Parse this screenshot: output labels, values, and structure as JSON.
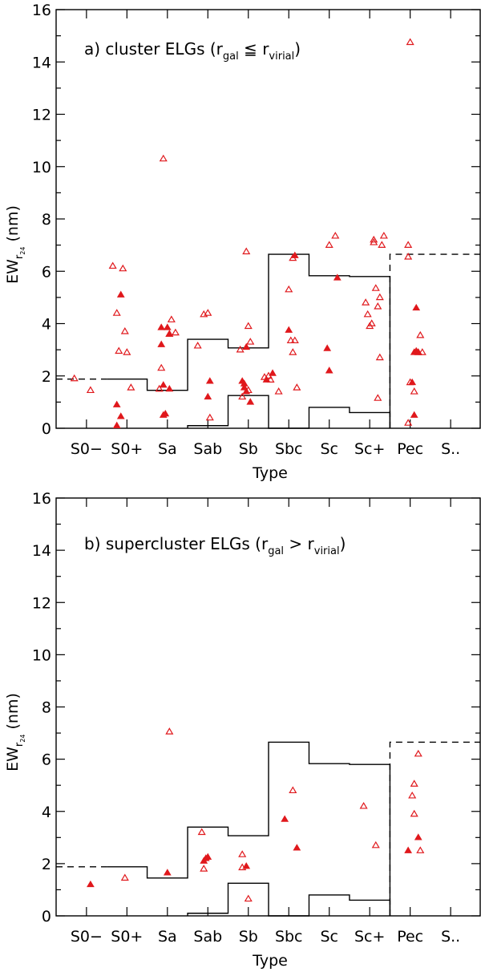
{
  "chart_data": [
    {
      "type": "scatter",
      "title": "a) cluster ELGs (r_gal ≦ r_virial)",
      "title_parts": {
        "prefix": "a) cluster ELGs (r",
        "sub1": "gal",
        "mid": " ≦ r",
        "sub2": "virial",
        "suffix": ")"
      },
      "xlabel": "Type",
      "ylabel": {
        "main": "EW",
        "sub": "r",
        "subsub": "24",
        "unit": " (nm)"
      },
      "categories": [
        "S0−",
        "S0+",
        "Sa",
        "Sab",
        "Sb",
        "Sbc",
        "Sc",
        "Sc+",
        "Pec",
        "S.."
      ],
      "ylim": [
        0,
        16
      ],
      "yticks": [
        "0",
        "2",
        "4",
        "6",
        "8",
        "10",
        "12",
        "14",
        "16"
      ],
      "series": [
        {
          "name": "open",
          "points": [
            [
              -0.3,
              1.9
            ],
            [
              0.1,
              1.45
            ],
            [
              0.65,
              6.2
            ],
            [
              0.75,
              4.4
            ],
            [
              0.8,
              2.95
            ],
            [
              0.9,
              6.1
            ],
            [
              0.95,
              3.7
            ],
            [
              1.0,
              2.9
            ],
            [
              1.1,
              1.55
            ],
            [
              1.8,
              1.5
            ],
            [
              1.85,
              2.3
            ],
            [
              1.9,
              10.3
            ],
            [
              2.05,
              3.6
            ],
            [
              2.1,
              4.15
            ],
            [
              2.2,
              3.65
            ],
            [
              2.75,
              3.15
            ],
            [
              2.9,
              4.35
            ],
            [
              3.0,
              4.4
            ],
            [
              3.05,
              0.4
            ],
            [
              3.8,
              3.0
            ],
            [
              3.85,
              1.2
            ],
            [
              3.95,
              6.75
            ],
            [
              4.0,
              3.9
            ],
            [
              4.05,
              3.3
            ],
            [
              4.0,
              1.45
            ],
            [
              4.4,
              1.95
            ],
            [
              4.5,
              2.0
            ],
            [
              4.55,
              1.85
            ],
            [
              4.75,
              1.4
            ],
            [
              5.0,
              5.3
            ],
            [
              5.05,
              3.35
            ],
            [
              5.1,
              6.5
            ],
            [
              5.1,
              2.9
            ],
            [
              5.15,
              3.35
            ],
            [
              5.2,
              1.55
            ],
            [
              6.0,
              7.0
            ],
            [
              6.15,
              7.35
            ],
            [
              6.9,
              4.8
            ],
            [
              6.95,
              4.35
            ],
            [
              7.0,
              3.9
            ],
            [
              7.05,
              4.0
            ],
            [
              7.1,
              7.1
            ],
            [
              7.15,
              5.35
            ],
            [
              7.2,
              4.65
            ],
            [
              7.25,
              5.0
            ],
            [
              7.25,
              2.7
            ],
            [
              7.2,
              1.15
            ],
            [
              7.3,
              7.0
            ],
            [
              7.35,
              7.35
            ],
            [
              7.1,
              7.2
            ],
            [
              8.0,
              14.75
            ],
            [
              7.95,
              7.0
            ],
            [
              7.95,
              6.55
            ],
            [
              8.0,
              1.75
            ],
            [
              7.95,
              0.2
            ],
            [
              8.1,
              1.4
            ],
            [
              8.2,
              2.9
            ],
            [
              8.25,
              3.55
            ],
            [
              8.3,
              2.9
            ]
          ]
        },
        {
          "name": "filled",
          "points": [
            [
              0.75,
              0.9
            ],
            [
              0.75,
              0.1
            ],
            [
              0.85,
              5.1
            ],
            [
              0.85,
              0.45
            ],
            [
              1.85,
              3.85
            ],
            [
              1.85,
              3.2
            ],
            [
              1.9,
              1.65
            ],
            [
              1.95,
              0.55
            ],
            [
              1.9,
              0.5
            ],
            [
              2.0,
              3.85
            ],
            [
              2.05,
              3.6
            ],
            [
              2.05,
              1.5
            ],
            [
              3.05,
              1.8
            ],
            [
              3.0,
              1.2
            ],
            [
              3.85,
              1.8
            ],
            [
              3.9,
              1.7
            ],
            [
              3.9,
              1.55
            ],
            [
              3.95,
              1.4
            ],
            [
              3.95,
              3.1
            ],
            [
              4.05,
              1.0
            ],
            [
              4.45,
              1.85
            ],
            [
              4.6,
              2.1
            ],
            [
              5.0,
              3.75
            ],
            [
              5.15,
              6.6
            ],
            [
              5.95,
              3.05
            ],
            [
              6.0,
              2.2
            ],
            [
              6.2,
              5.75
            ],
            [
              8.05,
              1.75
            ],
            [
              8.1,
              0.5
            ],
            [
              8.15,
              4.6
            ],
            [
              8.15,
              2.95
            ],
            [
              8.1,
              2.9
            ],
            [
              8.2,
              2.9
            ]
          ]
        }
      ]
    },
    {
      "type": "scatter",
      "title": "b) supercluster ELGs (r_gal > r_virial)",
      "title_parts": {
        "prefix": "b) supercluster ELGs (r",
        "sub1": "gal",
        "mid": " > r",
        "sub2": "virial",
        "suffix": ")"
      },
      "xlabel": "Type",
      "ylabel": {
        "main": "EW",
        "sub": "r",
        "subsub": "24",
        "unit": " (nm)"
      },
      "categories": [
        "S0−",
        "S0+",
        "Sa",
        "Sab",
        "Sb",
        "Sbc",
        "Sc",
        "Sc+",
        "Pec",
        "S.."
      ],
      "ylim": [
        0,
        16
      ],
      "yticks": [
        "0",
        "2",
        "4",
        "6",
        "8",
        "10",
        "12",
        "14",
        "16"
      ],
      "series": [
        {
          "name": "open",
          "points": [
            [
              0.95,
              1.45
            ],
            [
              2.05,
              7.05
            ],
            [
              2.85,
              3.2
            ],
            [
              2.9,
              1.8
            ],
            [
              3.85,
              2.35
            ],
            [
              3.85,
              1.85
            ],
            [
              4.0,
              0.65
            ],
            [
              5.1,
              4.8
            ],
            [
              6.85,
              4.2
            ],
            [
              7.15,
              2.7
            ],
            [
              8.1,
              5.05
            ],
            [
              8.05,
              4.6
            ],
            [
              8.1,
              3.9
            ],
            [
              8.2,
              6.2
            ],
            [
              8.25,
              2.5
            ]
          ]
        },
        {
          "name": "filled",
          "points": [
            [
              0.1,
              1.2
            ],
            [
              2.0,
              1.65
            ],
            [
              2.9,
              2.1
            ],
            [
              2.95,
              2.2
            ],
            [
              3.0,
              2.25
            ],
            [
              3.95,
              1.9
            ],
            [
              4.9,
              3.7
            ],
            [
              5.2,
              2.6
            ],
            [
              7.95,
              2.5
            ],
            [
              8.2,
              3.0
            ]
          ]
        }
      ]
    }
  ],
  "comparison_lines": {
    "upper_solid_levels": [
      {
        "from": "S0+",
        "value": 1.88
      },
      {
        "from": "Sa",
        "value": 1.45
      },
      {
        "from": "Sab",
        "value": 3.4
      },
      {
        "from": "Sb",
        "value": 3.07
      },
      {
        "from": "Sbc",
        "value": 6.65
      },
      {
        "from": "Sc",
        "value": 5.83
      },
      {
        "from": "Sc+",
        "value": 5.8
      }
    ],
    "lower_solid_levels": [
      {
        "from": "Sab",
        "value": 0.1
      },
      {
        "from": "Sb",
        "value": 1.25
      },
      {
        "from": "Sbc",
        "value": 0.0
      },
      {
        "from": "Sc",
        "value": 0.8
      },
      {
        "from": "Sc+",
        "value": 0.6
      }
    ],
    "dashed_levels": [
      {
        "category": "S0−",
        "value": 1.88
      },
      {
        "from": "Pec",
        "to": "S..",
        "value": 6.65
      }
    ]
  }
}
